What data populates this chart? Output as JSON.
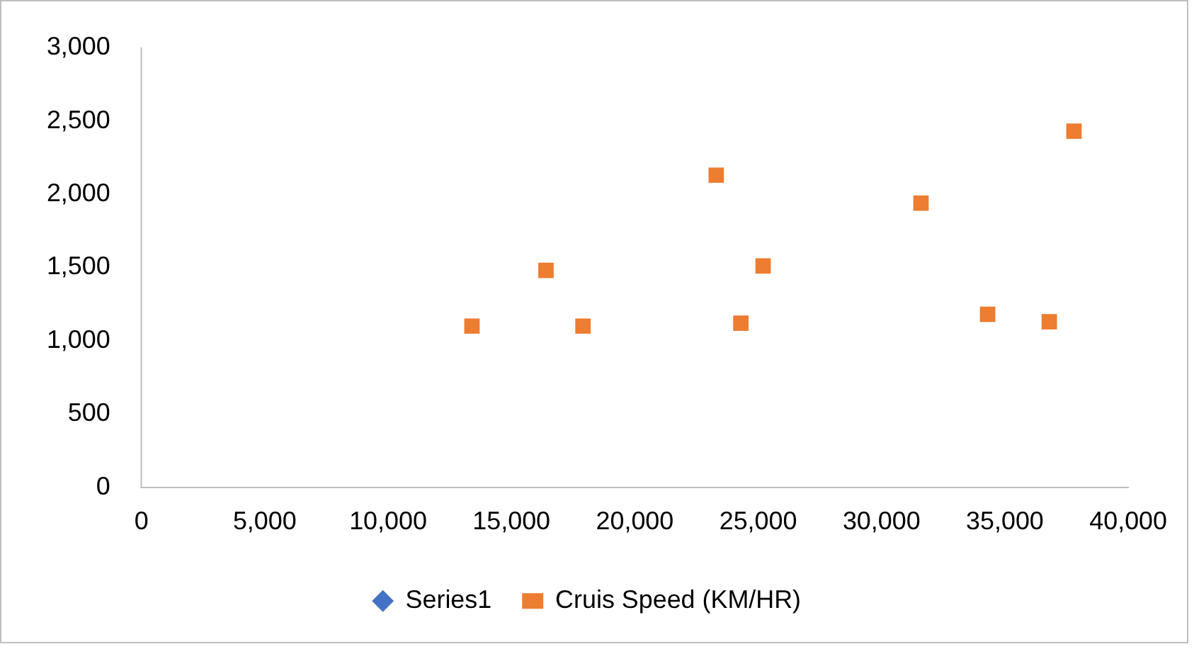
{
  "chart_data": {
    "type": "scatter",
    "marker": "square",
    "grid": false,
    "legend": "bottom",
    "xlim": [
      0,
      40000
    ],
    "xticks": [
      0,
      {
        "value": 5000,
        "label": "5,000"
      },
      {
        "value": 10000,
        "label": "10,000"
      },
      {
        "value": 15000,
        "label": "15,000"
      },
      {
        "value": 20000,
        "label": "20,000"
      },
      {
        "value": 25000,
        "label": "25,000"
      },
      {
        "value": 30000,
        "label": "30,000"
      },
      {
        "value": 35000,
        "label": "35,000"
      },
      {
        "value": 40000,
        "label": "40,000"
      }
    ],
    "ylim": [
      0,
      3000
    ],
    "yticks": [
      0,
      500,
      {
        "value": 1000,
        "label": "1,000"
      },
      {
        "value": 1500,
        "label": "1,500"
      },
      {
        "value": 2000,
        "label": "2,000"
      },
      {
        "value": 2500,
        "label": "2,500"
      },
      {
        "value": 3000,
        "label": "3,000"
      }
    ],
    "series": [
      {
        "name": "Series1",
        "color": "#4472c4",
        "marker": "diamond"
      },
      {
        "name": "Cruis Speed (KM/HR)",
        "color": "#ed7d31",
        "x": [
          13400,
          16400,
          17900,
          23300,
          24300,
          25200,
          31600,
          34300,
          36800,
          37800
        ],
        "values": [
          1100,
          1480,
          1100,
          2130,
          1120,
          1510,
          1940,
          1180,
          1130,
          2430
        ]
      }
    ]
  }
}
